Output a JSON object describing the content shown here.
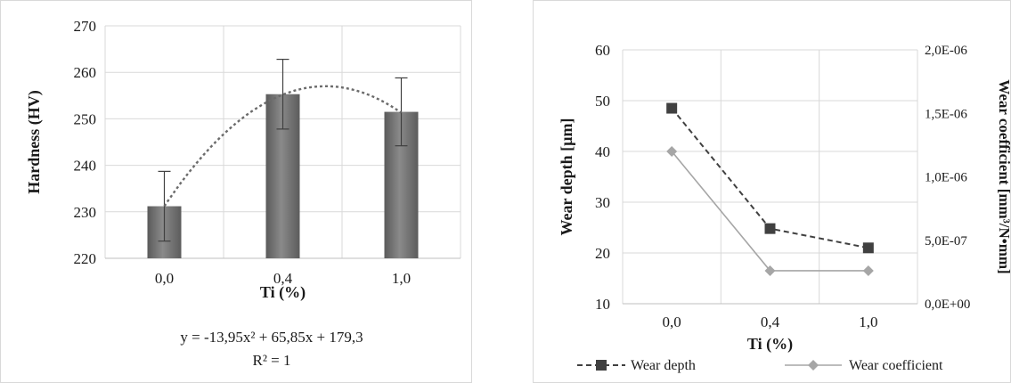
{
  "chart_data": [
    {
      "type": "bar",
      "categories": [
        "0,0",
        "0,4",
        "1,0"
      ],
      "values": [
        231.2,
        255.3,
        251.5
      ],
      "error_bars": [
        7.5,
        7.5,
        7.3
      ],
      "xlabel": "Ti (%)",
      "ylabel": "Hardness (HV)",
      "ylim": [
        220,
        270
      ],
      "yticks": [
        "220",
        "230",
        "240",
        "250",
        "260",
        "270"
      ],
      "grid": true,
      "trendline": {
        "type": "polynomial",
        "a": -13.95,
        "b": 65.85,
        "c": 179.3,
        "equation": "y = -13,95x² + 65,85x + 179,3",
        "r2_label": "R² = 1"
      },
      "colors": {
        "bar": "#7a7a7a",
        "trend": "#6b6b6b",
        "grid": "#d9d9d9",
        "error": "#404040"
      }
    },
    {
      "type": "line",
      "categories": [
        "0,0",
        "0,4",
        "1,0"
      ],
      "series": [
        {
          "name": "Wear depth",
          "axis": "left",
          "values": [
            48.5,
            24.8,
            21.0
          ],
          "color": "#404040",
          "dash": true,
          "marker": "square"
        },
        {
          "name": "Wear coefficient",
          "axis": "right",
          "values": [
            1.2e-06,
            2.6e-07,
            2.6e-07
          ],
          "color": "#a6a6a6",
          "dash": false,
          "marker": "diamond"
        }
      ],
      "xlabel": "Ti (%)",
      "ylabel": "Wear depth [µm]",
      "y2label": "Wear coefficient [mm³/N•mm]",
      "ylim": [
        10,
        60
      ],
      "yticks": [
        "10",
        "20",
        "30",
        "40",
        "50",
        "60"
      ],
      "y2lim": [
        0,
        2e-06
      ],
      "y2ticks": [
        "0,0E+00",
        "5,0E-07",
        "1,0E-06",
        "1,5E-06",
        "2,0E-06"
      ],
      "grid": true,
      "legend": "bottom"
    }
  ]
}
